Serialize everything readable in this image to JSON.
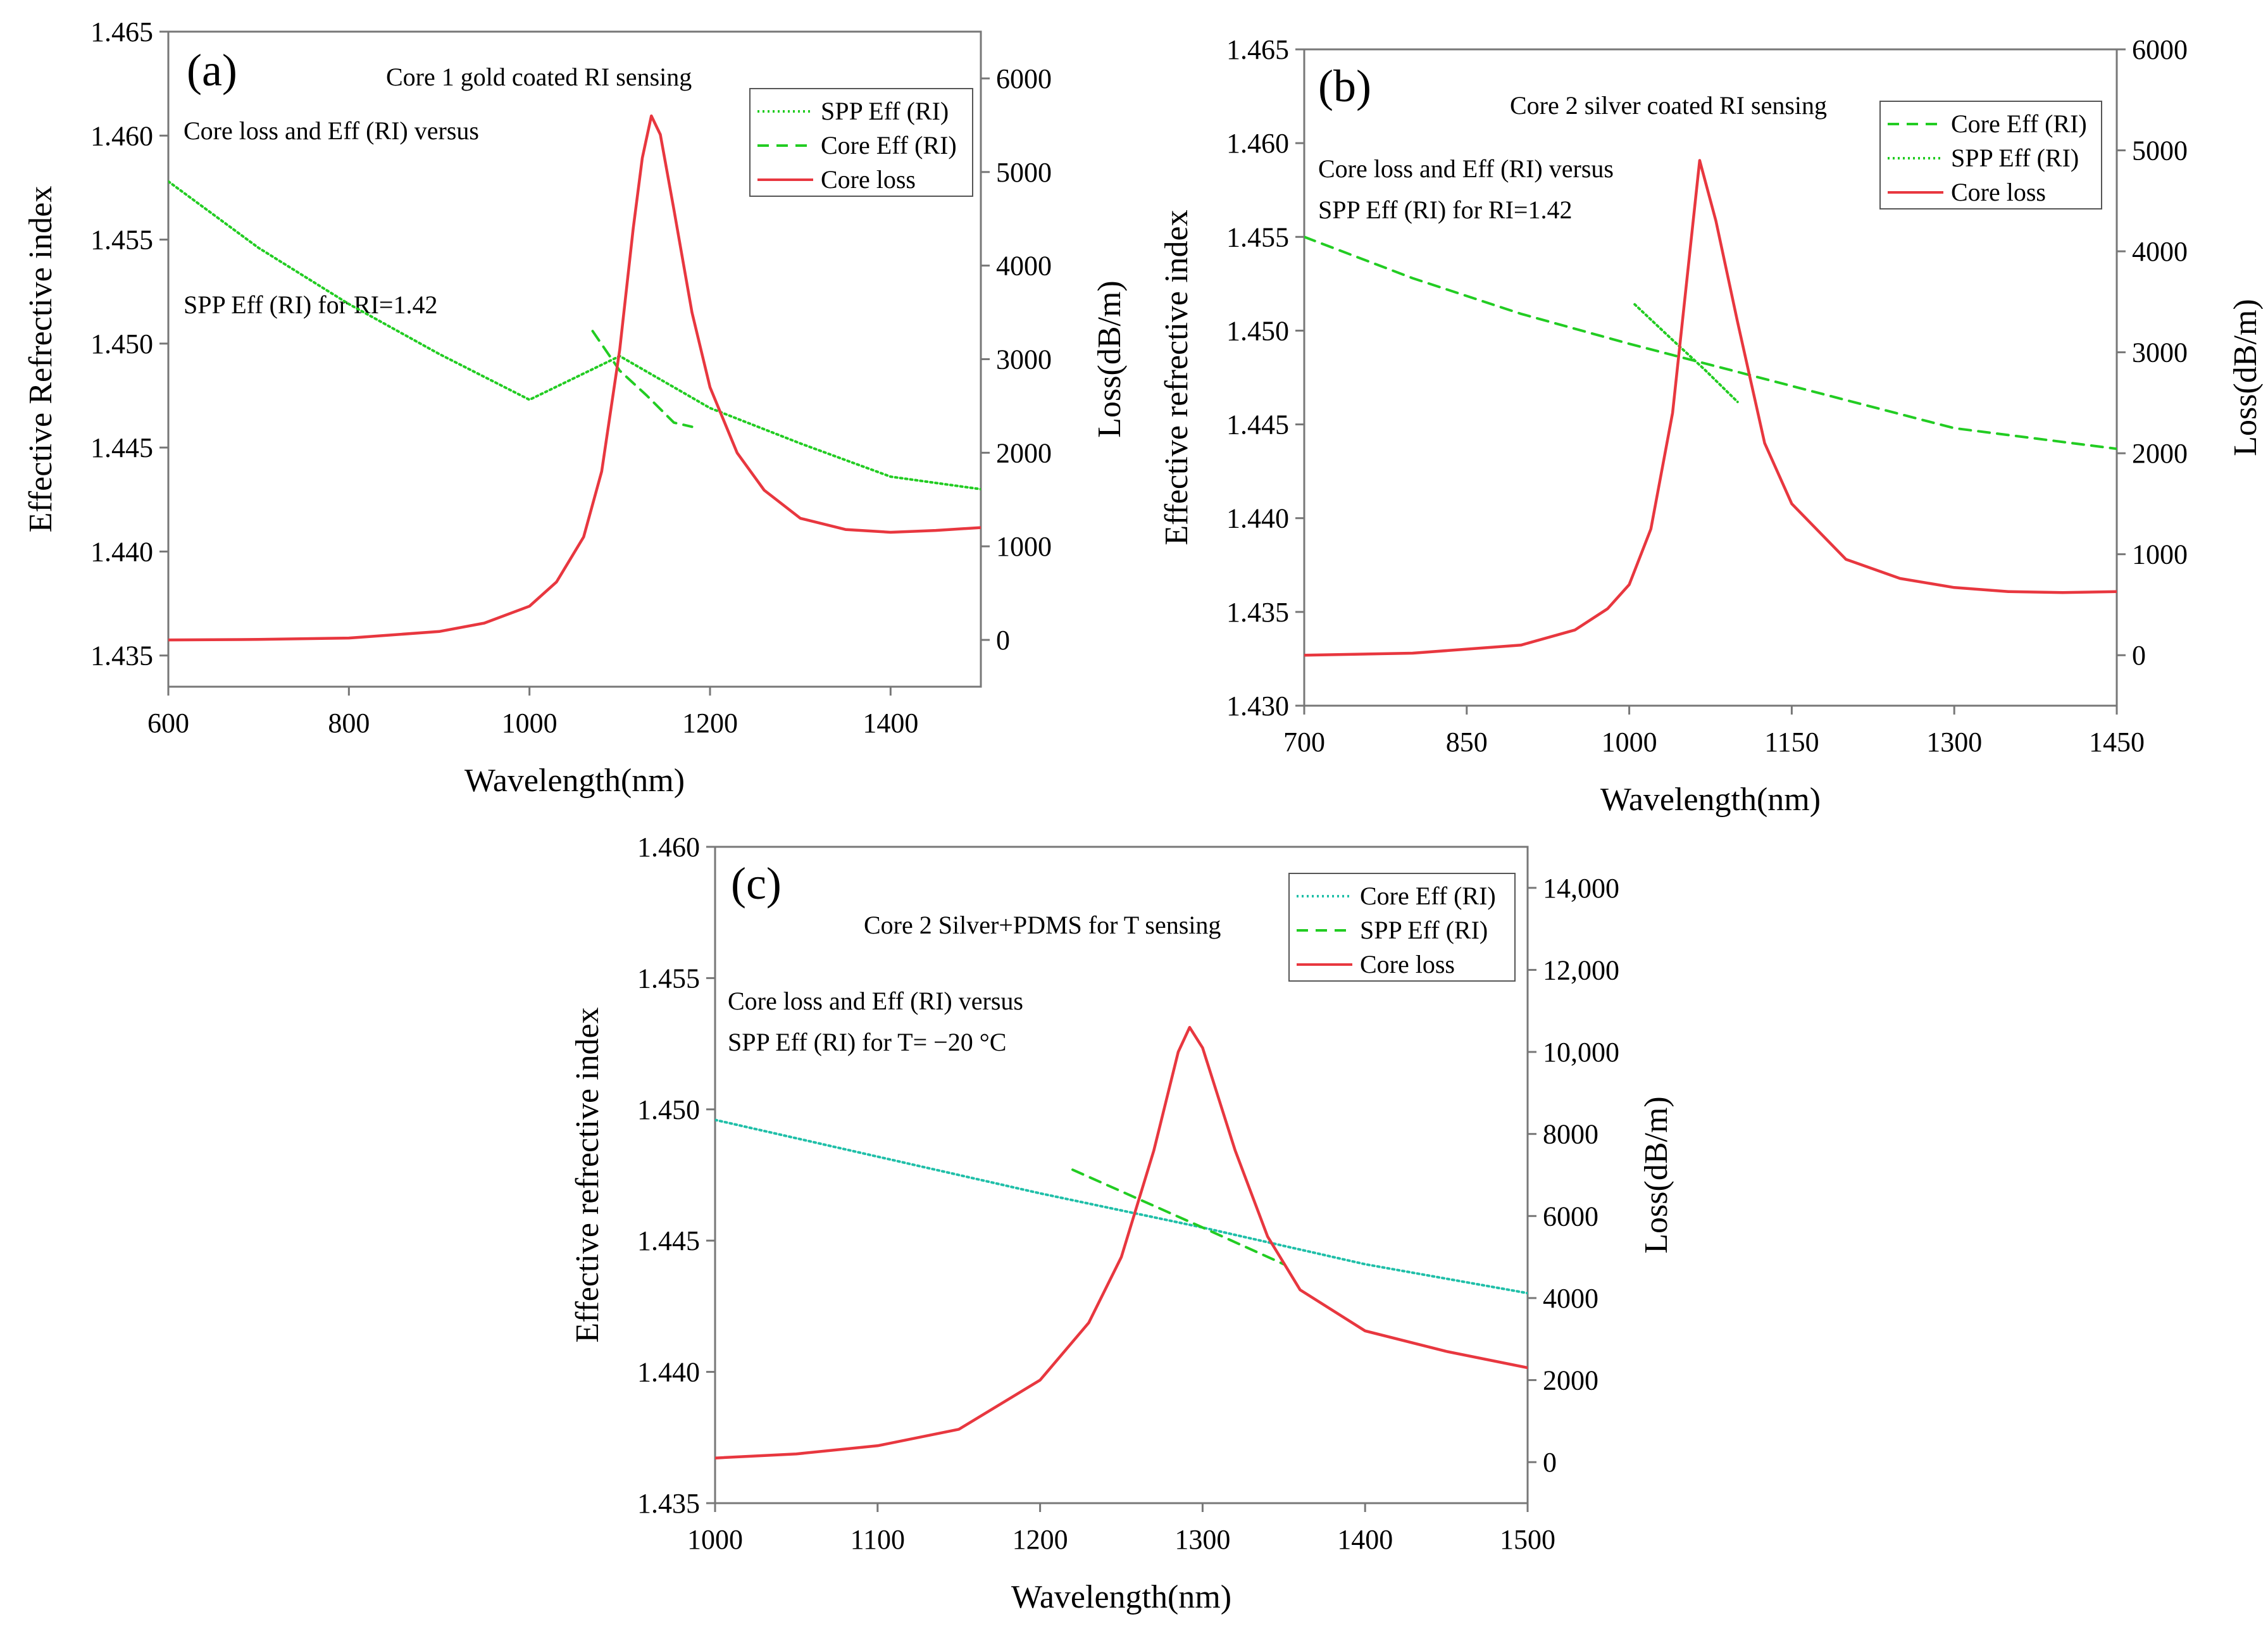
{
  "chart_data": [
    {
      "type": "line",
      "panel_label": "(a)",
      "title": "Core 1 gold coated RI sensing",
      "annotation_lines": [
        "Core loss and Eff (RI) versus",
        "SPP Eff (RI) for RI=1.42"
      ],
      "xlabel": "Wavelength(nm)",
      "ylabel": "Effective Refrective index",
      "y2label": "Loss(dB/m)",
      "xlim": [
        600,
        1500
      ],
      "ylim": [
        1.4335,
        1.465
      ],
      "y2lim": [
        -500,
        6500
      ],
      "x_ticks": [
        "600",
        "800",
        "1000",
        "1200",
        "1400"
      ],
      "y_ticks": [
        "1.435",
        "1.440",
        "1.445",
        "1.450",
        "1.455",
        "1.460",
        "1.465"
      ],
      "y2_ticks": [
        "0",
        "1000",
        "2000",
        "3000",
        "4000",
        "5000",
        "6000"
      ],
      "legend": [
        "SPP Eff (RI)",
        "Core Eff (RI)",
        "Core loss"
      ],
      "legend_position": "top-right",
      "series": [
        {
          "name": "SPP Eff (RI)",
          "axis": "left",
          "style": "dotted",
          "color": "#22cc22",
          "x": [
            600,
            700,
            800,
            900,
            1000,
            1100,
            1200,
            1300,
            1400,
            1500
          ],
          "y": [
            1.4578,
            1.4546,
            1.4519,
            1.4495,
            1.4473,
            1.4494,
            1.4469,
            1.4452,
            1.4436,
            1.443
          ]
        },
        {
          "name": "Core Eff (RI)",
          "axis": "left",
          "style": "dashed",
          "color": "#22cc22",
          "x": [
            1070,
            1100,
            1130,
            1160,
            1180
          ],
          "y": [
            1.4506,
            1.4487,
            1.4475,
            1.4462,
            1.446
          ]
        },
        {
          "name": "Core loss",
          "axis": "right",
          "style": "solid",
          "color": "#e8373f",
          "x": [
            600,
            700,
            800,
            900,
            950,
            1000,
            1030,
            1060,
            1080,
            1100,
            1115,
            1125,
            1135,
            1145,
            1160,
            1180,
            1200,
            1230,
            1260,
            1300,
            1350,
            1400,
            1450,
            1500
          ],
          "y": [
            0,
            5,
            20,
            90,
            180,
            360,
            620,
            1100,
            1800,
            3100,
            4400,
            5150,
            5600,
            5400,
            4600,
            3500,
            2700,
            2000,
            1600,
            1300,
            1180,
            1150,
            1170,
            1200
          ]
        }
      ]
    },
    {
      "type": "line",
      "panel_label": "(b)",
      "title": "Core 2 silver coated RI sensing",
      "annotation_lines": [
        "Core loss and Eff (RI) versus",
        "SPP Eff (RI) for RI=1.42"
      ],
      "xlabel": "Wavelength(nm)",
      "ylabel": "Effective refrective index",
      "y2label": "Loss(dB/m)",
      "xlim": [
        700,
        1450
      ],
      "ylim": [
        1.43,
        1.465
      ],
      "y2lim": [
        -500,
        6000
      ],
      "x_ticks": [
        "700",
        "850",
        "1000",
        "1150",
        "1300",
        "1450"
      ],
      "y_ticks": [
        "1.430",
        "1.435",
        "1.440",
        "1.445",
        "1.450",
        "1.455",
        "1.460",
        "1.465"
      ],
      "y2_ticks": [
        "0",
        "1000",
        "2000",
        "3000",
        "4000",
        "5000",
        "6000"
      ],
      "legend": [
        "Core Eff (RI)",
        "SPP Eff (RI)",
        "Core loss"
      ],
      "legend_position": "top-right",
      "series": [
        {
          "name": "Core Eff (RI)",
          "axis": "left",
          "style": "dashed",
          "color": "#22cc22",
          "x": [
            700,
            800,
            900,
            1000,
            1100,
            1200,
            1300,
            1450
          ],
          "y": [
            1.455,
            1.4528,
            1.4509,
            1.4493,
            1.4478,
            1.4463,
            1.4448,
            1.4437
          ]
        },
        {
          "name": "SPP Eff (RI)",
          "axis": "left",
          "style": "dotted",
          "color": "#22cc22",
          "x": [
            1005,
            1040,
            1070,
            1100
          ],
          "y": [
            1.4514,
            1.4495,
            1.4479,
            1.4462
          ]
        },
        {
          "name": "Core loss",
          "axis": "right",
          "style": "solid",
          "color": "#e8373f",
          "x": [
            700,
            800,
            900,
            950,
            980,
            1000,
            1020,
            1040,
            1055,
            1065,
            1080,
            1100,
            1125,
            1150,
            1200,
            1250,
            1300,
            1350,
            1400,
            1450
          ],
          "y": [
            0,
            20,
            100,
            250,
            460,
            700,
            1250,
            2400,
            3900,
            4900,
            4300,
            3300,
            2100,
            1500,
            950,
            760,
            670,
            630,
            620,
            630
          ]
        }
      ]
    },
    {
      "type": "line",
      "panel_label": "(c)",
      "title": "Core 2 Silver+PDMS for T sensing",
      "annotation_lines": [
        "Core loss and Eff (RI) versus",
        "SPP Eff (RI) for T= −20 °C"
      ],
      "xlabel": "Wavelength(nm)",
      "ylabel": "Effective refrective index",
      "y2label": "Loss(dB/m)",
      "xlim": [
        1000,
        1500
      ],
      "ylim": [
        1.435,
        1.46
      ],
      "y2lim": [
        -1000,
        15000
      ],
      "x_ticks": [
        "1000",
        "1100",
        "1200",
        "1300",
        "1400",
        "1500"
      ],
      "y_ticks": [
        "1.435",
        "1.440",
        "1.445",
        "1.450",
        "1.455",
        "1.460"
      ],
      "y2_ticks": [
        "0",
        "2000",
        "4000",
        "6000",
        "8000",
        "10,000",
        "12,000",
        "14,000"
      ],
      "legend": [
        "Core Eff (RI)",
        "SPP Eff (RI)",
        "Core loss"
      ],
      "legend_position": "top-right",
      "series": [
        {
          "name": "Core Eff (RI)",
          "axis": "left",
          "style": "dotted",
          "color": "#1fbfa8",
          "x": [
            1000,
            1100,
            1200,
            1300,
            1400,
            1500
          ],
          "y": [
            1.4496,
            1.4482,
            1.4468,
            1.4455,
            1.4441,
            1.443
          ]
        },
        {
          "name": "SPP Eff (RI)",
          "axis": "left",
          "style": "dashed",
          "color": "#22cc22",
          "x": [
            1220,
            1260,
            1300,
            1350
          ],
          "y": [
            1.4477,
            1.4466,
            1.4455,
            1.4441
          ]
        },
        {
          "name": "Core loss",
          "axis": "right",
          "style": "solid",
          "color": "#e8373f",
          "x": [
            1000,
            1050,
            1100,
            1150,
            1200,
            1230,
            1250,
            1270,
            1285,
            1292,
            1300,
            1320,
            1340,
            1360,
            1400,
            1450,
            1500
          ],
          "y": [
            100,
            200,
            400,
            800,
            2000,
            3400,
            5000,
            7600,
            10000,
            10600,
            10100,
            7600,
            5500,
            4200,
            3200,
            2700,
            2300
          ]
        }
      ]
    }
  ]
}
